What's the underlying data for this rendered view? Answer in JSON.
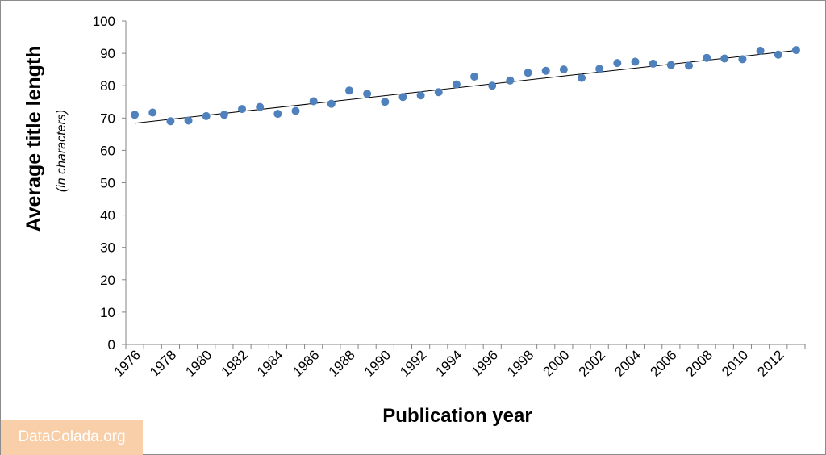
{
  "chart_data": {
    "type": "scatter",
    "title": "",
    "ylabel": "Average  title  length",
    "ylabel_sub": "(in characters)",
    "xlabel": "Publication year",
    "ylim": [
      0,
      100
    ],
    "yticks": [
      0,
      10,
      20,
      30,
      40,
      50,
      60,
      70,
      80,
      90,
      100
    ],
    "xlim": [
      1976,
      2013
    ],
    "xticks": [
      1976,
      1978,
      1980,
      1982,
      1984,
      1986,
      1988,
      1990,
      1992,
      1994,
      1996,
      1998,
      2000,
      2002,
      2004,
      2006,
      2008,
      2010,
      2012
    ],
    "grid": false,
    "x": [
      1976,
      1977,
      1978,
      1979,
      1980,
      1981,
      1982,
      1983,
      1984,
      1985,
      1986,
      1987,
      1988,
      1989,
      1990,
      1991,
      1992,
      1993,
      1994,
      1995,
      1996,
      1997,
      1998,
      1999,
      2000,
      2001,
      2002,
      2003,
      2004,
      2005,
      2006,
      2007,
      2008,
      2009,
      2010,
      2011,
      2012,
      2013
    ],
    "y": [
      71,
      71.7,
      69,
      69.2,
      70.6,
      71,
      72.8,
      73.4,
      71.3,
      72.2,
      75.2,
      74.4,
      78.5,
      77.5,
      75,
      76.5,
      77,
      78,
      80.4,
      82.8,
      80,
      81.6,
      84,
      84.6,
      85,
      82.4,
      85.2,
      87,
      87.4,
      86.8,
      86.4,
      86.2,
      88.6,
      88.4,
      88.2,
      90.8,
      89.6,
      91
    ],
    "trendline": {
      "x": [
        1976,
        2013
      ],
      "y": [
        68.4,
        90.9
      ]
    },
    "marker_color": "#4f81bd",
    "trendline_color": "#000000"
  },
  "watermark": "DataColada.org"
}
